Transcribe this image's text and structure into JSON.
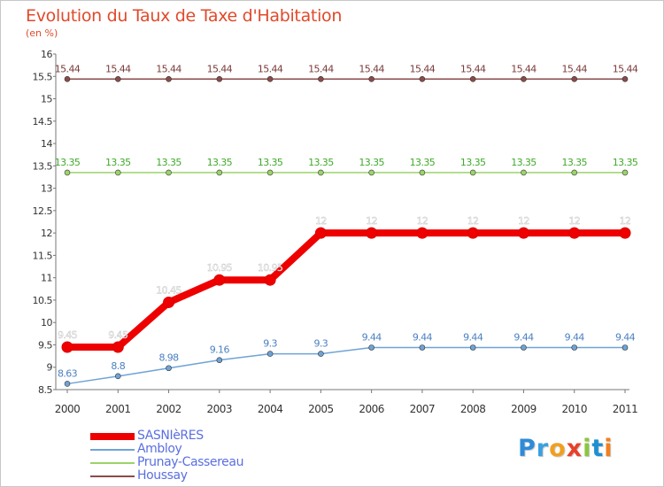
{
  "title": "Evolution du Taux de Taxe d'Habitation",
  "subtitle": "(en %)",
  "brand": {
    "letters": [
      {
        "ch": "P",
        "color": "#2e8bd8"
      },
      {
        "ch": "r",
        "color": "#3aa0e0"
      },
      {
        "ch": "o",
        "color": "#f0a020"
      },
      {
        "ch": "x",
        "color": "#e8402a"
      },
      {
        "ch": "i",
        "color": "#8cc63f"
      },
      {
        "ch": "t",
        "color": "#1e90d0"
      },
      {
        "ch": "i",
        "color": "#f08020"
      }
    ]
  },
  "chart_data": {
    "type": "line",
    "title": "Evolution du Taux de Taxe d'Habitation",
    "subtitle": "(en %)",
    "x": [
      "2000",
      "2001",
      "2002",
      "2003",
      "2004",
      "2005",
      "2006",
      "2007",
      "2008",
      "2009",
      "2010",
      "2011"
    ],
    "ylim": [
      8.5,
      16
    ],
    "ytick_step": 0.5,
    "yticks": [
      "8.5",
      "9",
      "9.5",
      "10",
      "10.5",
      "11",
      "11.5",
      "12",
      "12.5",
      "13",
      "13.5",
      "14",
      "14.5",
      "15",
      "15.5",
      "16"
    ],
    "grid": false,
    "legend_position": "bottom-left",
    "series": [
      {
        "name": "SASNIèRES",
        "color": "#ee0000",
        "label_color": "#ffffff",
        "values": [
          9.45,
          9.45,
          10.45,
          10.95,
          10.95,
          12,
          12,
          12,
          12,
          12,
          12,
          12
        ],
        "labels": [
          "9.45",
          "9.45",
          "10.45",
          "10.95",
          "10.95",
          "12",
          "12",
          "12",
          "12",
          "12",
          "12",
          "12"
        ]
      },
      {
        "name": "Ambloy",
        "color": "#6fa3d6",
        "label_color": "#4a7fc1",
        "values": [
          8.63,
          8.8,
          8.98,
          9.16,
          9.3,
          9.3,
          9.44,
          9.44,
          9.44,
          9.44,
          9.44,
          9.44
        ],
        "labels": [
          "8.63",
          "8.8",
          "8.98",
          "9.16",
          "9.3",
          "9.3",
          "9.44",
          "9.44",
          "9.44",
          "9.44",
          "9.44",
          "9.44"
        ]
      },
      {
        "name": "Prunay-Cassereau",
        "color": "#9bd46a",
        "label_color": "#3faa2a",
        "values": [
          13.35,
          13.35,
          13.35,
          13.35,
          13.35,
          13.35,
          13.35,
          13.35,
          13.35,
          13.35,
          13.35,
          13.35
        ],
        "labels": [
          "13.35",
          "13.35",
          "13.35",
          "13.35",
          "13.35",
          "13.35",
          "13.35",
          "13.35",
          "13.35",
          "13.35",
          "13.35",
          "13.35"
        ]
      },
      {
        "name": "Houssay",
        "color": "#8b4a4a",
        "label_color": "#7a3a3a",
        "values": [
          15.44,
          15.44,
          15.44,
          15.44,
          15.44,
          15.44,
          15.44,
          15.44,
          15.44,
          15.44,
          15.44,
          15.44
        ],
        "labels": [
          "15.44",
          "15.44",
          "15.44",
          "15.44",
          "15.44",
          "15.44",
          "15.44",
          "15.44",
          "15.44",
          "15.44",
          "15.44",
          "15.44"
        ]
      }
    ]
  }
}
